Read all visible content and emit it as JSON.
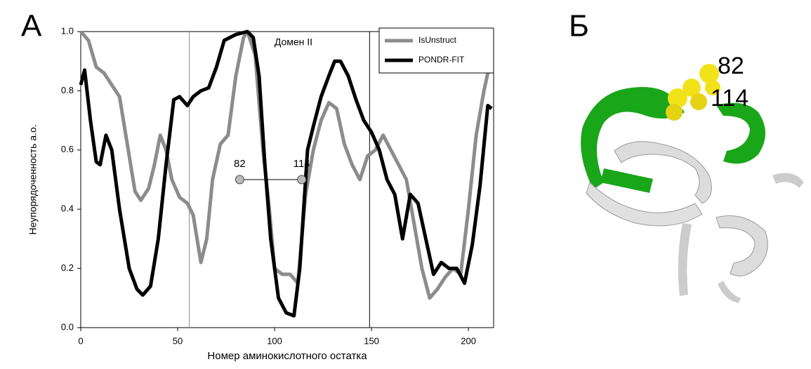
{
  "panel_labels": [
    "А",
    "Б"
  ],
  "structure_labels": [
    "82",
    "114"
  ],
  "chart_data": {
    "type": "line",
    "x_label": "Номер аминокислотного остатка",
    "y_label": "Неупорядоченность а.о.",
    "annotation": "Домен II",
    "domain_bounds": [
      56,
      149
    ],
    "markers": {
      "x": [
        82,
        114
      ],
      "y": 0.5
    },
    "xlim": [
      0,
      213
    ],
    "xticks": [
      0,
      50,
      100,
      150,
      200
    ],
    "ylim": [
      0,
      1
    ],
    "yticks": [
      {
        "value": 0,
        "label": "0.0"
      },
      {
        "value": 0.2,
        "label": "0.2"
      },
      {
        "value": 0.4,
        "label": "0.4"
      },
      {
        "value": 0.6,
        "label": "0.6"
      },
      {
        "value": 0.8,
        "label": "0.8"
      },
      {
        "value": 1,
        "label": "1.0"
      }
    ],
    "legend": "top-right",
    "series": [
      {
        "name": "IsUnstruct",
        "color": "#8c8c8c",
        "x": [
          0,
          4,
          8,
          12,
          16,
          20,
          24,
          28,
          31,
          35,
          38,
          41,
          44,
          47,
          51,
          55,
          58,
          62,
          65,
          68,
          72,
          76,
          80,
          84,
          86,
          90,
          94,
          97,
          100,
          104,
          108,
          112,
          116,
          120,
          124,
          128,
          132,
          136,
          140,
          144,
          148,
          152,
          156,
          160,
          164,
          168,
          172,
          176,
          180,
          184,
          188,
          192,
          196,
          200,
          204,
          208,
          212
        ],
        "values": [
          1.0,
          0.97,
          0.88,
          0.86,
          0.82,
          0.78,
          0.62,
          0.46,
          0.43,
          0.47,
          0.55,
          0.65,
          0.6,
          0.5,
          0.44,
          0.42,
          0.38,
          0.22,
          0.3,
          0.5,
          0.62,
          0.65,
          0.85,
          0.98,
          1.0,
          0.92,
          0.6,
          0.42,
          0.2,
          0.18,
          0.18,
          0.15,
          0.45,
          0.6,
          0.7,
          0.76,
          0.74,
          0.62,
          0.55,
          0.5,
          0.58,
          0.6,
          0.65,
          0.6,
          0.55,
          0.5,
          0.35,
          0.2,
          0.1,
          0.13,
          0.17,
          0.2,
          0.18,
          0.4,
          0.65,
          0.8,
          0.92
        ]
      },
      {
        "name": "PONDR-FIT",
        "color": "#000000",
        "x": [
          0,
          2,
          5,
          8,
          10,
          13,
          16,
          20,
          25,
          29,
          32,
          36,
          40,
          44,
          48,
          51,
          55,
          58,
          62,
          66,
          70,
          74,
          80,
          86,
          89,
          92,
          95,
          98,
          102,
          106,
          110,
          113,
          117,
          120,
          124,
          128,
          131,
          134,
          138,
          142,
          146,
          150,
          154,
          158,
          162,
          166,
          170,
          174,
          178,
          182,
          186,
          190,
          194,
          198,
          202,
          206,
          210,
          212
        ],
        "values": [
          0.82,
          0.87,
          0.7,
          0.56,
          0.55,
          0.65,
          0.6,
          0.4,
          0.2,
          0.13,
          0.11,
          0.14,
          0.3,
          0.55,
          0.77,
          0.78,
          0.75,
          0.78,
          0.8,
          0.81,
          0.88,
          0.97,
          0.99,
          1.0,
          0.98,
          0.85,
          0.55,
          0.3,
          0.1,
          0.05,
          0.04,
          0.2,
          0.6,
          0.68,
          0.78,
          0.85,
          0.9,
          0.9,
          0.85,
          0.77,
          0.7,
          0.66,
          0.6,
          0.5,
          0.45,
          0.3,
          0.45,
          0.42,
          0.3,
          0.18,
          0.22,
          0.2,
          0.2,
          0.15,
          0.28,
          0.48,
          0.75,
          0.74
        ]
      }
    ]
  }
}
